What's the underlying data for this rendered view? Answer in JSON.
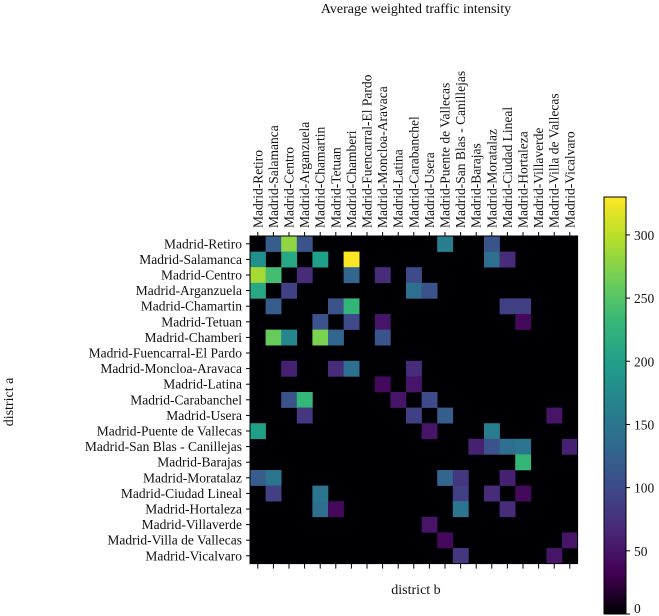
{
  "chart_data": {
    "type": "heatmap",
    "title": "Average weighted traffic intensity",
    "xlabel": "district b",
    "ylabel": "district a",
    "rows": [
      "Madrid-Retiro",
      "Madrid-Salamanca",
      "Madrid-Centro",
      "Madrid-Arganzuela",
      "Madrid-Chamartin",
      "Madrid-Tetuan",
      "Madrid-Chamberi",
      "Madrid-Fuencarral-El Pardo",
      "Madrid-Moncloa-Aravaca",
      "Madrid-Latina",
      "Madrid-Carabanchel",
      "Madrid-Usera",
      "Madrid-Puente de Vallecas",
      "Madrid-San Blas - Canillejas",
      "Madrid-Barajas",
      "Madrid-Moratalaz",
      "Madrid-Ciudad Lineal",
      "Madrid-Hortaleza",
      "Madrid-Villaverde",
      "Madrid-Villa de Vallecas",
      "Madrid-Vicalvaro"
    ],
    "columns": [
      "Madrid-Retiro",
      "Madrid-Salamanca",
      "Madrid-Centro",
      "Madrid-Arganzuela",
      "Madrid-Chamartin",
      "Madrid-Tetuan",
      "Madrid-Chamberi",
      "Madrid-Fuencarral-El Pardo",
      "Madrid-Moncloa-Aravaca",
      "Madrid-Latina",
      "Madrid-Carabanchel",
      "Madrid-Usera",
      "Madrid-Puente de Vallecas",
      "Madrid-San Blas - Canillejas",
      "Madrid-Barajas",
      "Madrid-Moratalaz",
      "Madrid-Ciudad Lineal",
      "Madrid-Hortaleza",
      "Madrid-Villaverde",
      "Madrid-Villa de Vallecas",
      "Madrid-Vicalvaro"
    ],
    "values": [
      [
        0,
        120,
        280,
        110,
        0,
        0,
        0,
        0,
        0,
        0,
        0,
        0,
        160,
        0,
        0,
        110,
        0,
        0,
        0,
        0,
        0
      ],
      [
        180,
        0,
        210,
        0,
        200,
        0,
        330,
        0,
        0,
        0,
        0,
        0,
        0,
        0,
        0,
        140,
        70,
        0,
        0,
        0,
        0
      ],
      [
        290,
        240,
        0,
        70,
        0,
        0,
        130,
        0,
        70,
        0,
        100,
        0,
        0,
        0,
        0,
        0,
        0,
        0,
        0,
        0,
        0
      ],
      [
        210,
        0,
        90,
        0,
        0,
        0,
        0,
        0,
        0,
        0,
        140,
        110,
        0,
        0,
        0,
        0,
        0,
        0,
        0,
        0,
        0
      ],
      [
        0,
        120,
        0,
        0,
        0,
        110,
        230,
        0,
        0,
        0,
        0,
        0,
        0,
        0,
        0,
        0,
        90,
        90,
        0,
        0,
        0
      ],
      [
        0,
        0,
        0,
        0,
        110,
        0,
        100,
        0,
        50,
        0,
        0,
        0,
        0,
        0,
        0,
        0,
        0,
        40,
        0,
        0,
        0
      ],
      [
        0,
        260,
        170,
        0,
        270,
        130,
        0,
        0,
        110,
        0,
        0,
        0,
        0,
        0,
        0,
        0,
        0,
        0,
        0,
        0,
        0
      ],
      [
        0,
        0,
        0,
        0,
        0,
        0,
        0,
        0,
        0,
        0,
        0,
        0,
        0,
        0,
        0,
        0,
        0,
        0,
        0,
        0,
        0
      ],
      [
        0,
        0,
        60,
        0,
        0,
        70,
        140,
        0,
        0,
        0,
        70,
        0,
        0,
        0,
        0,
        0,
        0,
        0,
        0,
        0,
        0
      ],
      [
        0,
        0,
        0,
        0,
        0,
        0,
        0,
        0,
        40,
        0,
        50,
        0,
        0,
        0,
        0,
        0,
        0,
        0,
        0,
        0,
        0
      ],
      [
        0,
        0,
        110,
        230,
        0,
        0,
        0,
        0,
        0,
        50,
        0,
        100,
        0,
        0,
        0,
        0,
        0,
        0,
        0,
        0,
        0
      ],
      [
        0,
        0,
        0,
        80,
        0,
        0,
        0,
        0,
        0,
        0,
        90,
        0,
        120,
        0,
        0,
        0,
        0,
        0,
        0,
        50,
        0
      ],
      [
        200,
        0,
        0,
        0,
        0,
        0,
        0,
        0,
        0,
        0,
        0,
        50,
        0,
        0,
        0,
        160,
        0,
        0,
        0,
        0,
        0
      ],
      [
        0,
        0,
        0,
        0,
        0,
        0,
        0,
        0,
        0,
        0,
        0,
        0,
        0,
        0,
        60,
        110,
        140,
        150,
        0,
        0,
        60
      ],
      [
        0,
        0,
        0,
        0,
        0,
        0,
        0,
        0,
        0,
        0,
        0,
        0,
        0,
        0,
        0,
        0,
        0,
        230,
        0,
        0,
        0
      ],
      [
        120,
        150,
        0,
        0,
        0,
        0,
        0,
        0,
        0,
        0,
        0,
        0,
        130,
        80,
        0,
        0,
        60,
        0,
        0,
        0,
        0
      ],
      [
        0,
        90,
        0,
        0,
        150,
        0,
        0,
        0,
        0,
        0,
        0,
        0,
        0,
        90,
        0,
        70,
        0,
        40,
        0,
        0,
        0
      ],
      [
        0,
        0,
        0,
        0,
        140,
        40,
        0,
        0,
        0,
        0,
        0,
        0,
        0,
        150,
        0,
        0,
        70,
        0,
        0,
        0,
        0
      ],
      [
        0,
        0,
        0,
        0,
        0,
        0,
        0,
        0,
        0,
        0,
        0,
        50,
        0,
        0,
        0,
        0,
        0,
        0,
        0,
        0,
        0
      ],
      [
        0,
        0,
        0,
        0,
        0,
        0,
        0,
        0,
        0,
        0,
        0,
        0,
        40,
        0,
        0,
        0,
        0,
        0,
        0,
        0,
        50
      ],
      [
        0,
        0,
        0,
        0,
        0,
        0,
        0,
        0,
        0,
        0,
        0,
        0,
        0,
        80,
        0,
        0,
        0,
        0,
        0,
        50,
        0
      ]
    ],
    "colorbar": {
      "min": 0,
      "max": 330,
      "ticks": [
        0,
        50,
        100,
        150,
        200,
        250,
        300
      ]
    },
    "colormap": [
      "#440154",
      "#482878",
      "#3e4989",
      "#31688e",
      "#26828e",
      "#1f9e89",
      "#35b779",
      "#6ece58",
      "#b5de2b",
      "#fde725"
    ],
    "background": "#ffffff",
    "cell_zero_color": "#000004"
  }
}
